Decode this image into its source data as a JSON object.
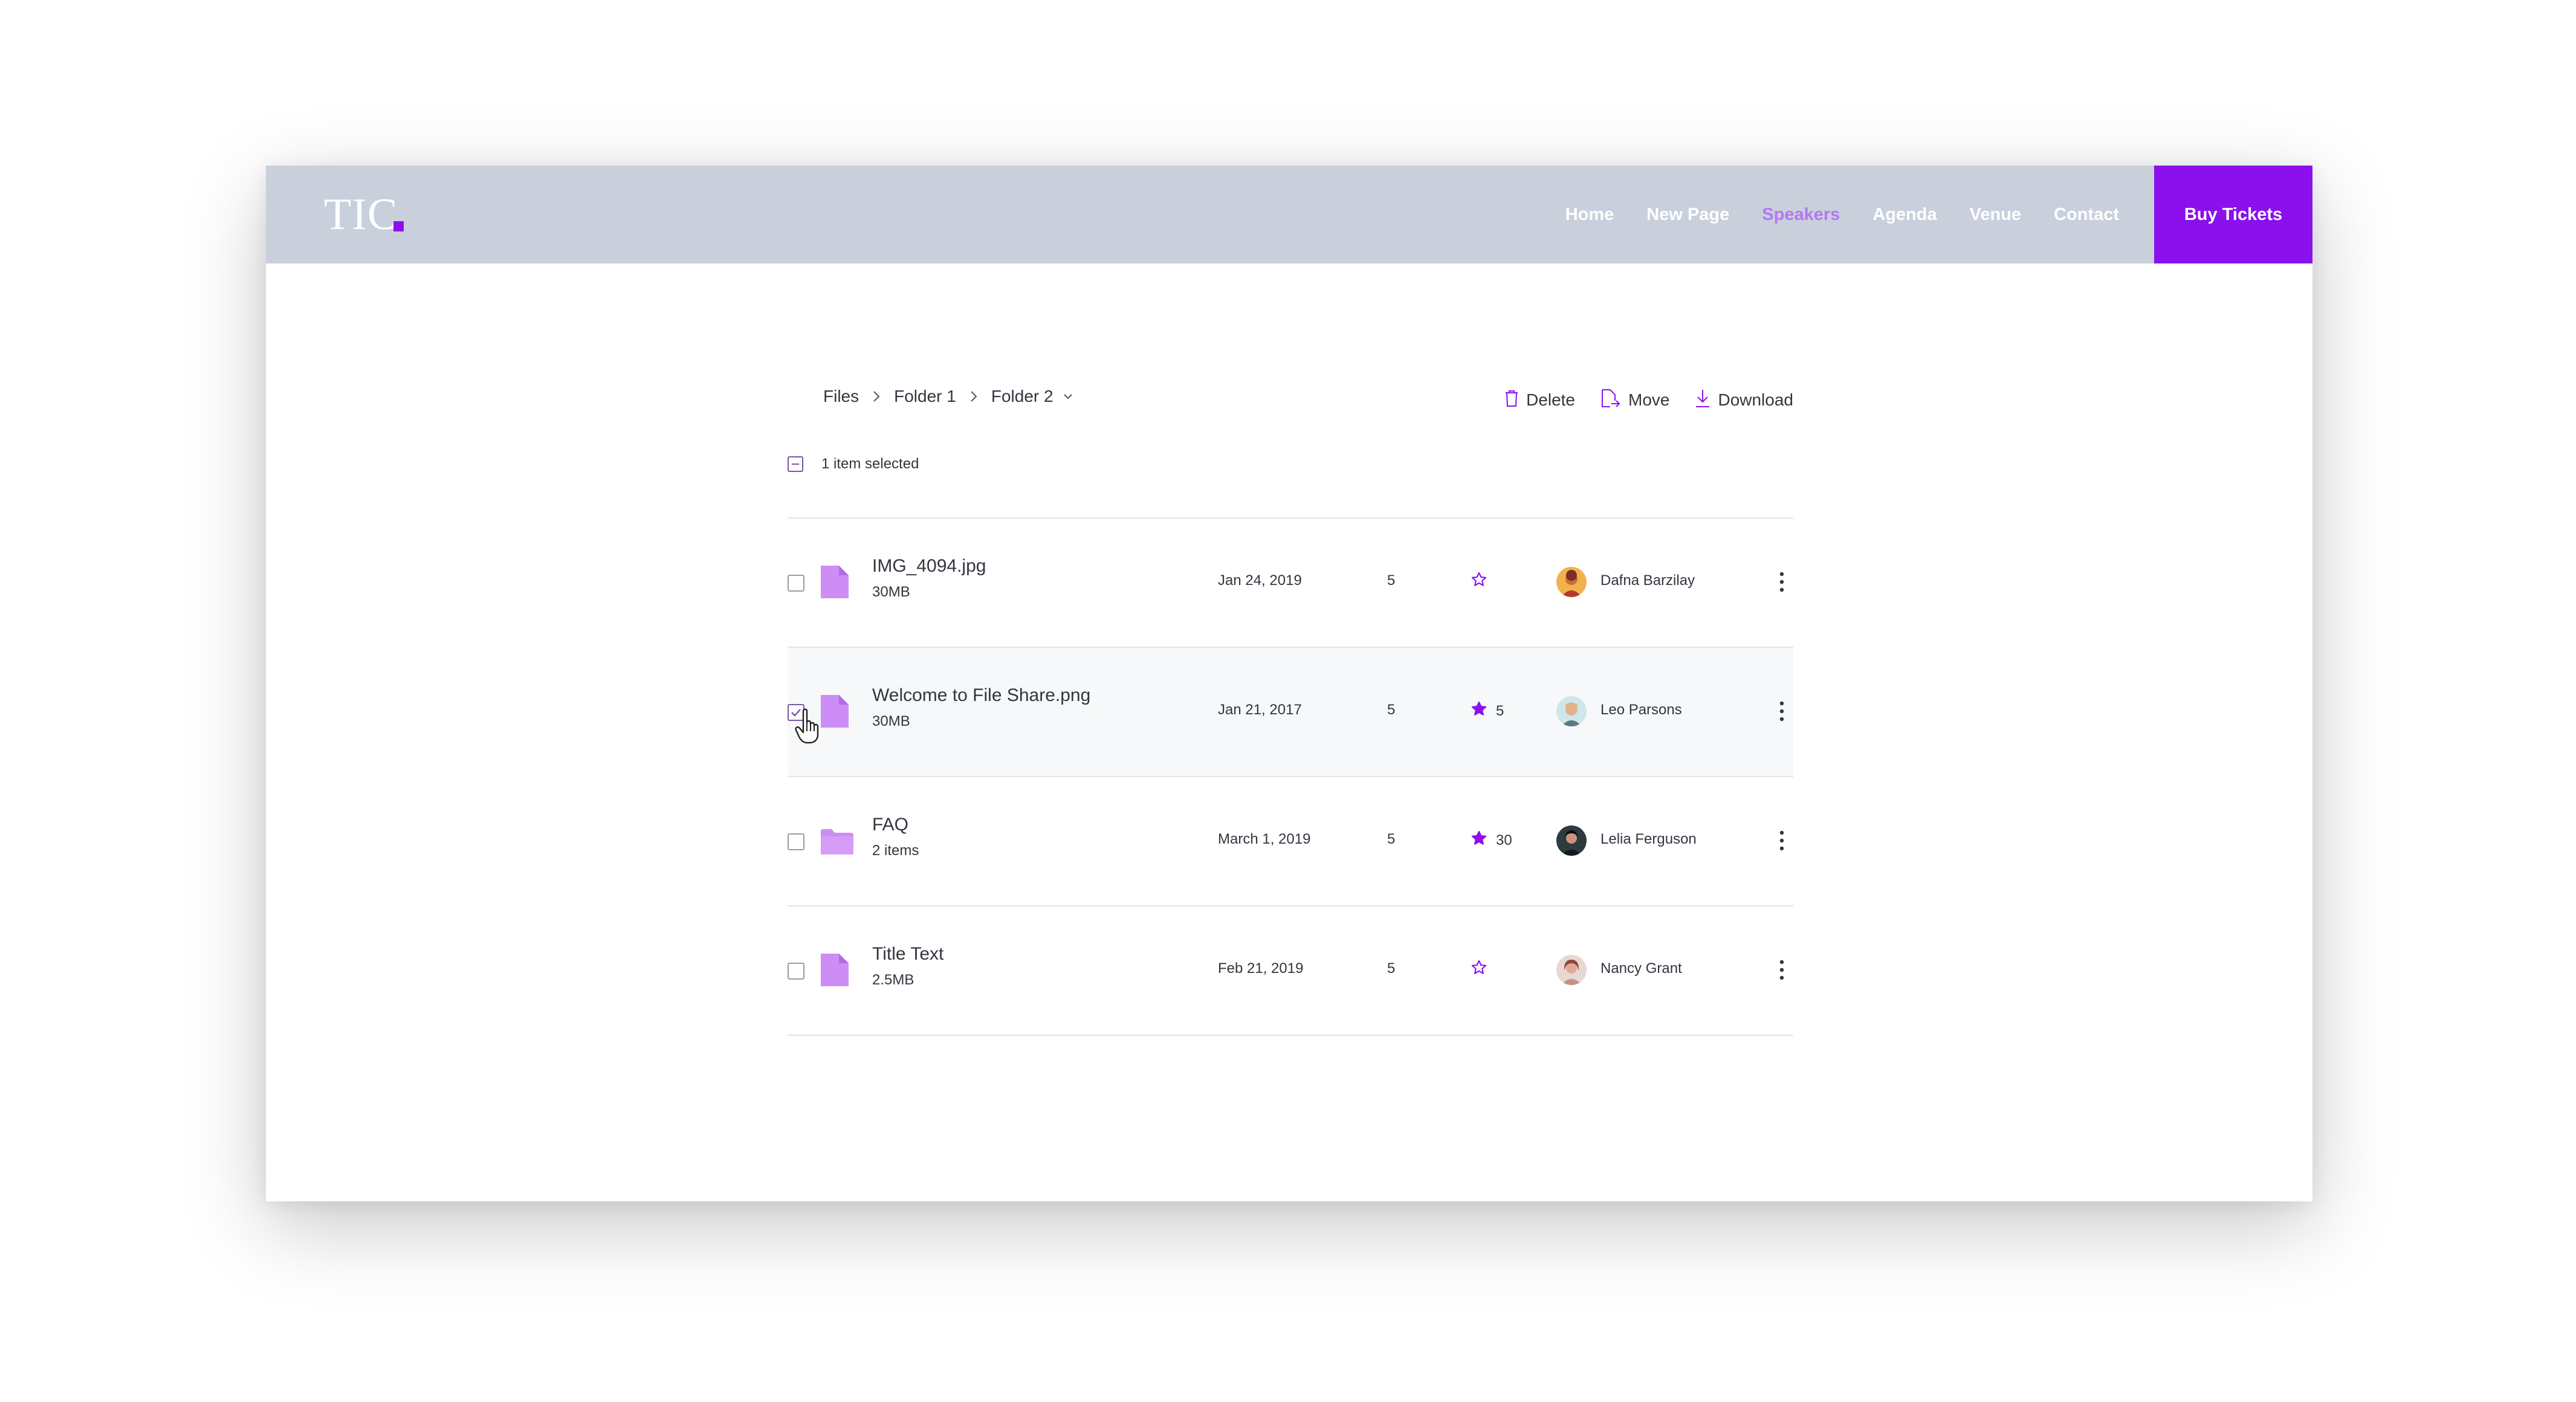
{
  "navbar": {
    "logo_text": "TIC",
    "items": [
      {
        "label": "Home",
        "active": false
      },
      {
        "label": "New Page",
        "active": false
      },
      {
        "label": "Speakers",
        "active": true
      },
      {
        "label": "Agenda",
        "active": false
      },
      {
        "label": "Venue",
        "active": false
      },
      {
        "label": "Contact",
        "active": false
      }
    ],
    "cta_label": "Buy Tickets"
  },
  "breadcrumb": {
    "items": [
      "Files",
      "Folder 1",
      "Folder 2"
    ]
  },
  "actions": {
    "delete_label": "Delete",
    "move_label": "Move",
    "download_label": "Download"
  },
  "selection": {
    "label": "1 item selected"
  },
  "colors": {
    "accent": "#8b10ee",
    "file_icon": "#cc8ef5",
    "nav_bg": "#c9d0dc"
  },
  "files": [
    {
      "name": "IMG_4094.jpg",
      "sub": "30MB",
      "date": "Jan 24, 2019",
      "count": "5",
      "starred": false,
      "stars": "",
      "owner": "Dafna Barzilay",
      "type": "file",
      "checked": false
    },
    {
      "name": "Welcome to File Share.png",
      "sub": "30MB",
      "date": "Jan 21, 2017",
      "count": "5",
      "starred": true,
      "stars": "5",
      "owner": "Leo Parsons",
      "type": "file",
      "checked": true
    },
    {
      "name": "FAQ",
      "sub": "2 items",
      "date": "March 1, 2019",
      "count": "5",
      "starred": true,
      "stars": "30",
      "owner": "Lelia Ferguson",
      "type": "folder",
      "checked": false
    },
    {
      "name": "Title Text",
      "sub": "2.5MB",
      "date": "Feb 21, 2019",
      "count": "5",
      "starred": false,
      "stars": "",
      "owner": "Nancy Grant",
      "type": "file",
      "checked": false
    }
  ]
}
